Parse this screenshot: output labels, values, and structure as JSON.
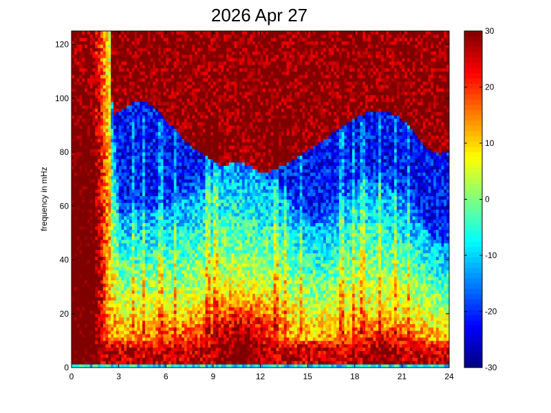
{
  "chart_data": {
    "type": "heatmap",
    "title": "2026 Apr 27",
    "xlabel": "",
    "ylabel": "frequency in mHz",
    "xlim": [
      0,
      24
    ],
    "ylim": [
      0,
      125
    ],
    "x_ticks": [
      0,
      3,
      6,
      9,
      12,
      15,
      18,
      21,
      24
    ],
    "y_ticks": [
      0,
      20,
      40,
      60,
      80,
      100,
      120
    ],
    "colorbar": {
      "range": [
        -30,
        30
      ],
      "ticks": [
        -30,
        -20,
        -10,
        0,
        10,
        20,
        30
      ],
      "colormap": "jet"
    },
    "grid": false,
    "features": {
      "background_level": 30,
      "low_frequency_band_mHz": [
        0,
        10
      ],
      "low_frequency_level": 30,
      "early_hours_high_band": [
        0,
        2.5
      ],
      "cold_region_level": -22,
      "midday_warm_region": {
        "hours": [
          8.5,
          13.5
        ],
        "top_mHz": 35
      },
      "evening_warm_region": {
        "hours": [
          17,
          22.5
        ],
        "top_mHz": 20
      }
    }
  }
}
